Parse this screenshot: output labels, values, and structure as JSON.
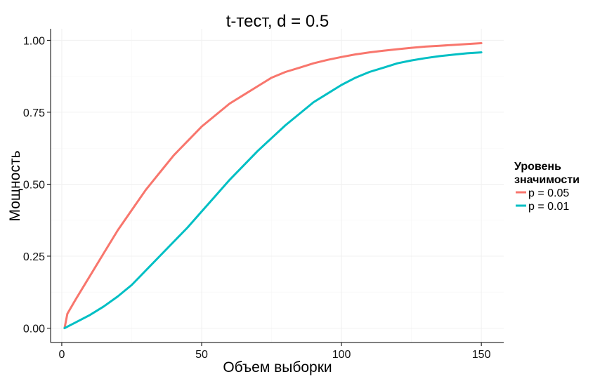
{
  "chart_data": {
    "type": "line",
    "title": "t-тест, d = 0.5",
    "xlabel": "Объем выборки",
    "ylabel": "Мощность",
    "xlim": [
      -4,
      158
    ],
    "ylim": [
      -0.05,
      1.04
    ],
    "xticks": [
      0,
      50,
      100,
      150
    ],
    "yticks": [
      0.0,
      0.25,
      0.5,
      0.75,
      1.0
    ],
    "xtick_labels": [
      "0",
      "50",
      "100",
      "150"
    ],
    "ytick_labels": [
      "0.00",
      "0.25",
      "0.50",
      "0.75",
      "1.00"
    ],
    "grid": true,
    "legend": {
      "title_line1": "Уровень",
      "title_line2": "значимости",
      "position": "right"
    },
    "x": [
      1,
      2,
      5,
      10,
      15,
      20,
      25,
      30,
      35,
      40,
      45,
      50,
      55,
      60,
      65,
      70,
      75,
      80,
      85,
      90,
      95,
      100,
      105,
      110,
      115,
      120,
      125,
      130,
      135,
      140,
      145,
      150
    ],
    "series": [
      {
        "name": "p = 0.05",
        "color": "#F8766D",
        "values": [
          0.0,
          0.05,
          0.1,
          0.18,
          0.26,
          0.34,
          0.41,
          0.48,
          0.54,
          0.6,
          0.65,
          0.7,
          0.74,
          0.78,
          0.81,
          0.84,
          0.87,
          0.89,
          0.905,
          0.92,
          0.932,
          0.942,
          0.951,
          0.958,
          0.964,
          0.969,
          0.974,
          0.978,
          0.981,
          0.984,
          0.987,
          0.99
        ]
      },
      {
        "name": "p = 0.01",
        "color": "#00BFC4",
        "values": [
          0.0,
          0.005,
          0.02,
          0.045,
          0.075,
          0.11,
          0.15,
          0.2,
          0.25,
          0.3,
          0.35,
          0.405,
          0.46,
          0.515,
          0.565,
          0.615,
          0.66,
          0.705,
          0.745,
          0.785,
          0.815,
          0.845,
          0.87,
          0.89,
          0.905,
          0.92,
          0.93,
          0.938,
          0.945,
          0.95,
          0.955,
          0.958
        ]
      }
    ]
  }
}
